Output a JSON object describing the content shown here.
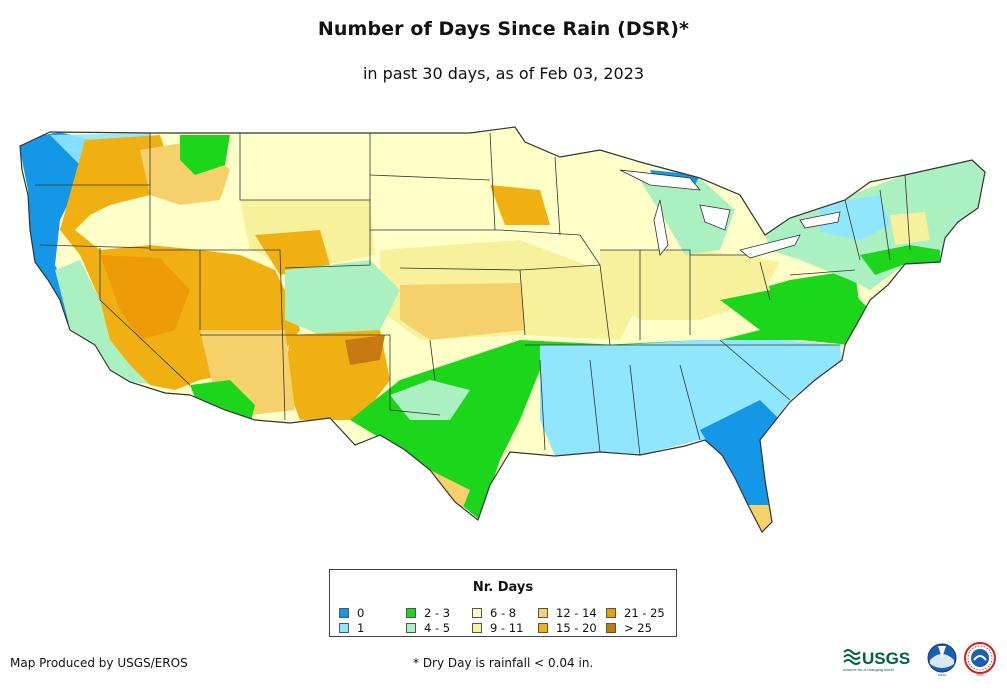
{
  "title": "Number of Days Since Rain (DSR)*",
  "subtitle": "in past 30 days, as of Feb 03, 2023",
  "legend": {
    "title": "Nr. Days",
    "items": [
      {
        "label": "0",
        "color": "#1497e6"
      },
      {
        "label": "1",
        "color": "#90e6ff"
      },
      {
        "label": "2 - 3",
        "color": "#1bd61b"
      },
      {
        "label": "4 - 5",
        "color": "#aaf0c0"
      },
      {
        "label": "6 - 8",
        "color": "#ffffc8"
      },
      {
        "label": "9 - 11",
        "color": "#f7f19c"
      },
      {
        "label": "12 - 14",
        "color": "#f5d06b"
      },
      {
        "label": "15 - 20",
        "color": "#f0b012"
      },
      {
        "label": "21 - 25",
        "color": "#ee9b08"
      },
      {
        "label": "> 25",
        "color": "#c67a10"
      }
    ]
  },
  "footer": {
    "producer": "Map Produced by USGS/EROS",
    "note": "* Dry Day is rainfall < 0.04 in."
  },
  "logos": {
    "usgs": "USGS",
    "usgs_tagline": "science for a changing world",
    "noaa": "NOAA",
    "nws": "NWS"
  }
}
